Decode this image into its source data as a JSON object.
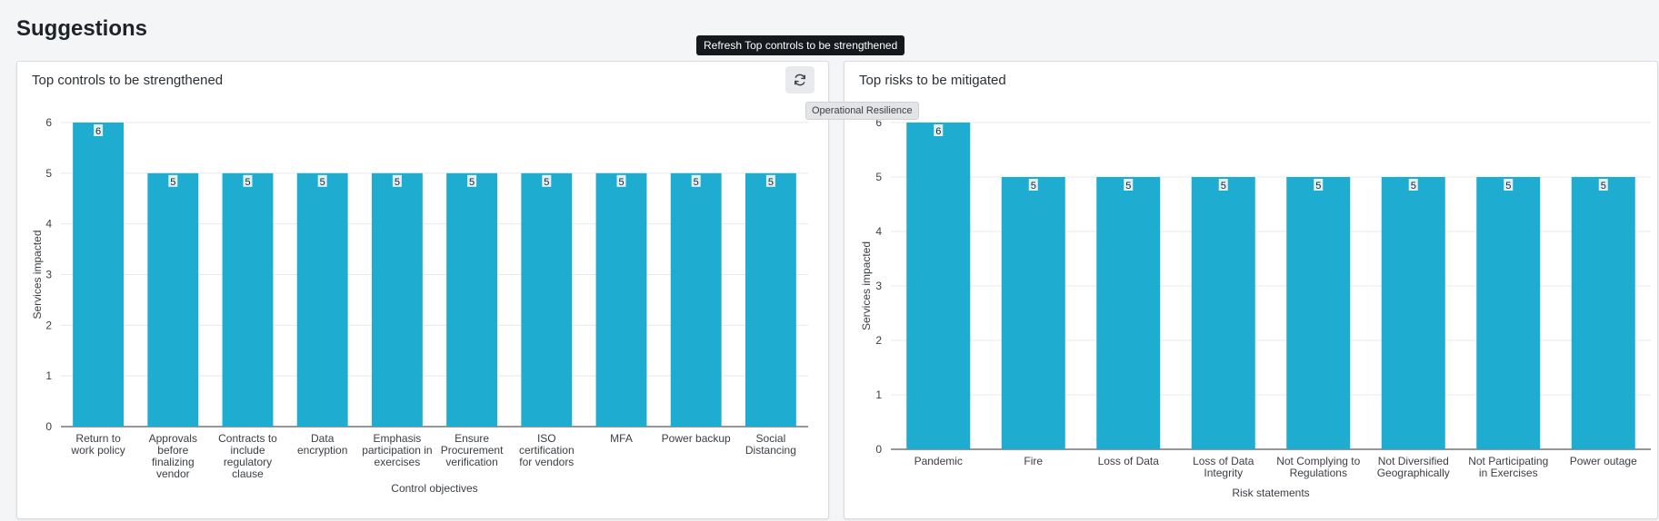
{
  "page": {
    "title": "Suggestions"
  },
  "colors": {
    "bar": "#1eadd1",
    "grid": "#e6e8eb",
    "axis": "#2b2f36"
  },
  "tooltips": {
    "refresh": "Refresh Top controls to be strengthened",
    "hover": "Operational Resilience"
  },
  "icons": {
    "refresh": "refresh-icon"
  },
  "chart_data": [
    {
      "type": "bar",
      "title": "Top controls to be strengthened",
      "xlabel": "Control objectives",
      "ylabel": "Services impacted",
      "ylim": [
        0,
        6
      ],
      "yticks": [
        0,
        1,
        2,
        3,
        4,
        5,
        6
      ],
      "grid": true,
      "categories": [
        [
          "Return to",
          "work policy"
        ],
        [
          "Approvals",
          "before",
          "finalizing",
          "vendor"
        ],
        [
          "Contracts to",
          "include",
          "regulatory",
          "clause"
        ],
        [
          "Data",
          "encryption"
        ],
        [
          "Emphasis",
          "participation in",
          "exercises"
        ],
        [
          "Ensure",
          "Procurement",
          "verification"
        ],
        [
          "ISO",
          "certification",
          "for vendors"
        ],
        [
          "MFA"
        ],
        [
          "Power backup"
        ],
        [
          "Social",
          "Distancing"
        ]
      ],
      "values": [
        6,
        5,
        5,
        5,
        5,
        5,
        5,
        5,
        5,
        5
      ]
    },
    {
      "type": "bar",
      "title": "Top risks to be mitigated",
      "xlabel": "Risk statements",
      "ylabel": "Services impacted",
      "ylim": [
        0,
        6
      ],
      "yticks": [
        0,
        1,
        2,
        3,
        4,
        5,
        6
      ],
      "grid": true,
      "categories": [
        [
          "Pandemic"
        ],
        [
          "Fire"
        ],
        [
          "Loss of Data"
        ],
        [
          "Loss of Data",
          "Integrity"
        ],
        [
          "Not Complying to",
          "Regulations"
        ],
        [
          "Not Diversified",
          "Geographically"
        ],
        [
          "Not Participating",
          "in Exercises"
        ],
        [
          "Power outage"
        ]
      ],
      "values": [
        6,
        5,
        5,
        5,
        5,
        5,
        5,
        5
      ]
    }
  ]
}
